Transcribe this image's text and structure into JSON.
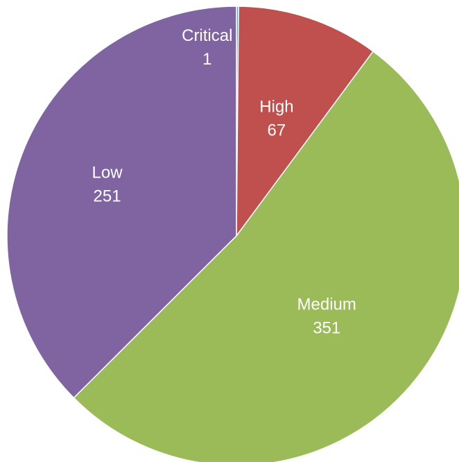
{
  "chart_data": {
    "type": "pie",
    "categories": [
      "Critical",
      "High",
      "Medium",
      "Low"
    ],
    "values": [
      1,
      67,
      351,
      251
    ],
    "colors": [
      "#4bacc6",
      "#c0504d",
      "#9bbb59",
      "#8064a2"
    ],
    "data_labels": [
      {
        "category": "Critical",
        "value": "1"
      },
      {
        "category": "High",
        "value": "67"
      },
      {
        "category": "Medium",
        "value": "351"
      },
      {
        "category": "Low",
        "value": "251"
      }
    ],
    "start_angle_deg": 0,
    "direction": "clockwise",
    "legend": "none",
    "title": ""
  }
}
